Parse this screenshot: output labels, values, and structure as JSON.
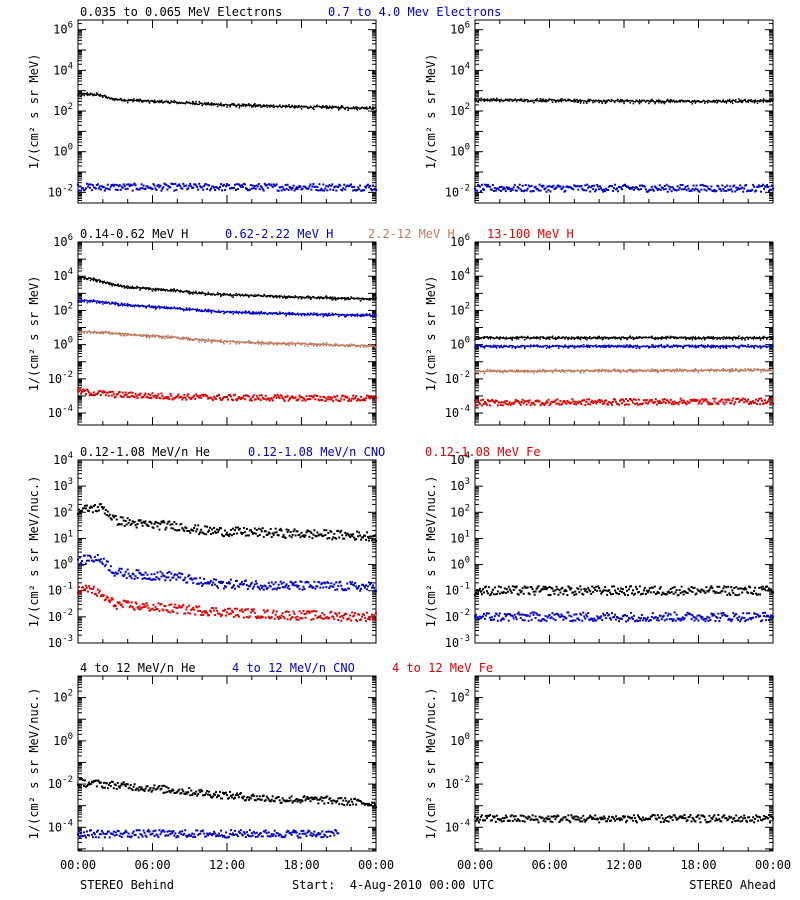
{
  "colors": {
    "black": "#000000",
    "blue": "#0000cc",
    "brown": "#c07a5e",
    "red": "#dd0000"
  },
  "footer": {
    "left": "STEREO Behind",
    "center": "Start:  4-Aug-2010 00:00 UTC",
    "right": "STEREO Ahead"
  },
  "chart_data": [
    {
      "type": "scatter",
      "panel": "behind-electrons",
      "yscale": "log",
      "ylim": [
        0.003,
        3000000
      ],
      "xlim": [
        0,
        24
      ],
      "xlabel": "",
      "ylabel": "1/(cm² s sr MeV)",
      "yticks": [
        "10^6",
        "10^4",
        "10^2",
        "10^0",
        "10^-2"
      ],
      "xticks": [
        "00:00",
        "06:00",
        "12:00",
        "18:00",
        "00:00"
      ],
      "legend": [
        {
          "text": "0.035 to 0.065 MeV Electrons",
          "color": "black"
        },
        {
          "text": "0.7 to 4.0 Mev Electrons",
          "color": "blue"
        }
      ],
      "series": [
        {
          "name": "0.035 to 0.065 MeV Electrons",
          "color": "black",
          "style": "line",
          "x": [
            0,
            1,
            2,
            2.5,
            3,
            4,
            6,
            8,
            10,
            12,
            15,
            18,
            21,
            24
          ],
          "y": [
            700,
            650,
            600,
            420,
            380,
            340,
            300,
            260,
            230,
            200,
            180,
            160,
            150,
            140
          ]
        },
        {
          "name": "0.7 to 4.0 Mev Electrons",
          "color": "blue",
          "style": "dots",
          "x": [
            0,
            24
          ],
          "y": [
            0.018,
            0.018
          ]
        }
      ]
    },
    {
      "type": "scatter",
      "panel": "ahead-electrons",
      "yscale": "log",
      "ylim": [
        0.003,
        3000000
      ],
      "xlim": [
        0,
        24
      ],
      "xlabel": "",
      "ylabel": "1/(cm² s sr MeV)",
      "yticks": [
        "10^6",
        "10^4",
        "10^2",
        "10^0",
        "10^-2"
      ],
      "xticks": [
        "00:00",
        "06:00",
        "12:00",
        "18:00",
        "00:00"
      ],
      "legend": [],
      "series": [
        {
          "name": "",
          "color": "black",
          "style": "line",
          "x": [
            0,
            6,
            12,
            18,
            24
          ],
          "y": [
            350,
            330,
            310,
            300,
            320
          ]
        },
        {
          "name": "",
          "color": "blue",
          "style": "dots",
          "x": [
            0,
            24
          ],
          "y": [
            0.016,
            0.016
          ]
        }
      ]
    },
    {
      "type": "scatter",
      "panel": "behind-protons",
      "yscale": "log",
      "ylim": [
        2e-05,
        1000000
      ],
      "xlim": [
        0,
        24
      ],
      "xlabel": "",
      "ylabel": "1/(cm² s sr MeV)",
      "yticks": [
        "10^6",
        "10^4",
        "10^2",
        "10^0",
        "10^-2",
        "10^-4"
      ],
      "xticks": [
        "00:00",
        "06:00",
        "12:00",
        "18:00",
        "00:00"
      ],
      "legend": [
        {
          "text": "0.14-0.62 MeV H",
          "color": "black"
        },
        {
          "text": "0.62-2.22 MeV H",
          "color": "blue"
        },
        {
          "text": "2.2-12 MeV H",
          "color": "brown"
        },
        {
          "text": "13-100 MeV H",
          "color": "red"
        }
      ],
      "series": [
        {
          "name": "0.14-0.62 MeV H",
          "color": "black",
          "style": "line",
          "x": [
            0,
            1,
            2,
            3,
            5,
            8,
            10,
            12,
            16,
            20,
            24
          ],
          "y": [
            9000,
            7000,
            5000,
            3000,
            2000,
            1400,
            1000,
            800,
            650,
            550,
            450
          ]
        },
        {
          "name": "0.62-2.22 MeV H",
          "color": "blue",
          "style": "line",
          "x": [
            0,
            2,
            4,
            8,
            10,
            12,
            16,
            20,
            24
          ],
          "y": [
            400,
            300,
            200,
            130,
            100,
            80,
            65,
            55,
            50
          ]
        },
        {
          "name": "2.2-12 MeV H",
          "color": "brown",
          "style": "line",
          "x": [
            0,
            2,
            5,
            8,
            10,
            12,
            16,
            20,
            24
          ],
          "y": [
            6,
            5,
            3.5,
            2.5,
            1.8,
            1.5,
            1.2,
            1.0,
            0.8
          ]
        },
        {
          "name": "13-100 MeV H",
          "color": "red",
          "style": "dots",
          "x": [
            0,
            3,
            8,
            12,
            24
          ],
          "y": [
            0.0018,
            0.0012,
            0.0009,
            0.0008,
            0.0007
          ]
        }
      ]
    },
    {
      "type": "scatter",
      "panel": "ahead-protons",
      "yscale": "log",
      "ylim": [
        2e-05,
        1000000
      ],
      "xlim": [
        0,
        24
      ],
      "xlabel": "",
      "ylabel": "1/(cm² s sr MeV)",
      "yticks": [
        "10^6",
        "10^4",
        "10^2",
        "10^0",
        "10^-2",
        "10^-4"
      ],
      "xticks": [
        "00:00",
        "06:00",
        "12:00",
        "18:00",
        "00:00"
      ],
      "legend": [],
      "series": [
        {
          "name": "",
          "color": "black",
          "style": "line",
          "x": [
            0,
            24
          ],
          "y": [
            2.5,
            2.5
          ]
        },
        {
          "name": "",
          "color": "blue",
          "style": "line",
          "x": [
            0,
            24
          ],
          "y": [
            0.8,
            0.8
          ]
        },
        {
          "name": "",
          "color": "brown",
          "style": "line",
          "x": [
            0,
            24
          ],
          "y": [
            0.028,
            0.032
          ]
        },
        {
          "name": "",
          "color": "red",
          "style": "dots",
          "x": [
            0,
            24
          ],
          "y": [
            0.0004,
            0.0005
          ]
        }
      ]
    },
    {
      "type": "scatter",
      "panel": "behind-heavy-low",
      "yscale": "log",
      "ylim": [
        0.001,
        10000
      ],
      "xlim": [
        0,
        24
      ],
      "xlabel": "",
      "ylabel": "1/(cm² s sr MeV/nuc.)",
      "yticks": [
        "10^4",
        "10^3",
        "10^2",
        "10^1",
        "10^0",
        "10^-1",
        "10^-2",
        "10^-3"
      ],
      "xticks": [
        "00:00",
        "06:00",
        "12:00",
        "18:00",
        "00:00"
      ],
      "legend": [
        {
          "text": "0.12-1.08 MeV/n He",
          "color": "black"
        },
        {
          "text": "0.12-1.08 MeV/n CNO",
          "color": "blue"
        },
        {
          "text": "0.12-1.08 MeV Fe",
          "color": "red"
        }
      ],
      "series": [
        {
          "name": "0.12-1.08 MeV/n He",
          "color": "black",
          "style": "dots",
          "x": [
            0,
            1,
            2,
            3,
            5,
            8,
            10,
            12,
            16,
            20,
            24
          ],
          "y": [
            110,
            140,
            150,
            50,
            35,
            30,
            20,
            18,
            16,
            14,
            12
          ]
        },
        {
          "name": "0.12-1.08 MeV/n CNO",
          "color": "blue",
          "style": "dots",
          "x": [
            0,
            1,
            2,
            3,
            5,
            8,
            10,
            12,
            16,
            20,
            24
          ],
          "y": [
            1.2,
            1.8,
            1.5,
            0.5,
            0.4,
            0.35,
            0.2,
            0.18,
            0.16,
            0.15,
            0.14
          ]
        },
        {
          "name": "0.12-1.08 MeV Fe",
          "color": "red",
          "style": "dots",
          "x": [
            0,
            1,
            2,
            3,
            5,
            8,
            12,
            16,
            24
          ],
          "y": [
            0.1,
            0.12,
            0.06,
            0.03,
            0.025,
            0.02,
            0.015,
            0.012,
            0.01
          ]
        }
      ]
    },
    {
      "type": "scatter",
      "panel": "ahead-heavy-low",
      "yscale": "log",
      "ylim": [
        0.001,
        10000
      ],
      "xlim": [
        0,
        24
      ],
      "xlabel": "",
      "ylabel": "1/(cm² s sr MeV/nuc.)",
      "yticks": [
        "10^4",
        "10^3",
        "10^2",
        "10^1",
        "10^0",
        "10^-1",
        "10^-2",
        "10^-3"
      ],
      "xticks": [
        "00:00",
        "06:00",
        "12:00",
        "18:00",
        "00:00"
      ],
      "legend": [],
      "series": [
        {
          "name": "",
          "color": "black",
          "style": "dots",
          "x": [
            0,
            24
          ],
          "y": [
            0.1,
            0.1
          ]
        },
        {
          "name": "",
          "color": "blue",
          "style": "dots",
          "x": [
            0,
            24
          ],
          "y": [
            0.01,
            0.01
          ]
        }
      ]
    },
    {
      "type": "scatter",
      "panel": "behind-heavy-high",
      "yscale": "log",
      "ylim": [
        8e-06,
        1000
      ],
      "xlim": [
        0,
        24
      ],
      "xlabel": "",
      "ylabel": "1/(cm² s sr MeV/nuc.)",
      "yticks": [
        "10^2",
        "10^0",
        "10^-2",
        "10^-4"
      ],
      "xticks": [
        "00:00",
        "06:00",
        "12:00",
        "18:00",
        "00:00"
      ],
      "legend": [
        {
          "text": "4 to 12 MeV/n He",
          "color": "black"
        },
        {
          "text": "4 to 12 MeV/n CNO",
          "color": "blue"
        },
        {
          "text": "4 to 12 MeV Fe",
          "color": "red"
        }
      ],
      "series": [
        {
          "name": "4 to 12 MeV/n He",
          "color": "black",
          "style": "dots",
          "x": [
            0,
            4,
            8,
            12,
            16,
            20,
            24
          ],
          "y": [
            0.012,
            0.008,
            0.005,
            0.003,
            0.002,
            0.0018,
            0.0012
          ]
        },
        {
          "name": "4 to 12 MeV/n CNO",
          "color": "blue",
          "style": "dots",
          "x": [
            0,
            21
          ],
          "y": [
            5e-05,
            5e-05
          ]
        }
      ]
    },
    {
      "type": "scatter",
      "panel": "ahead-heavy-high",
      "yscale": "log",
      "ylim": [
        8e-06,
        1000
      ],
      "xlim": [
        0,
        24
      ],
      "xlabel": "",
      "ylabel": "1/(cm² s sr MeV/nuc.)",
      "yticks": [
        "10^2",
        "10^0",
        "10^-2",
        "10^-4"
      ],
      "xticks": [
        "00:00",
        "06:00",
        "12:00",
        "18:00",
        "00:00"
      ],
      "legend": [],
      "series": [
        {
          "name": "",
          "color": "black",
          "style": "dots",
          "x": [
            0,
            24
          ],
          "y": [
            0.00025,
            0.00025
          ]
        }
      ]
    }
  ]
}
